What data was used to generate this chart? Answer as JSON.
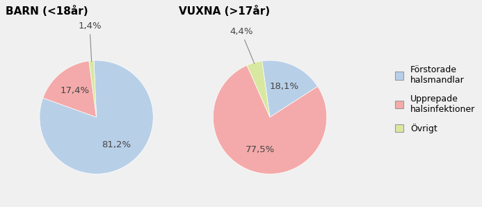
{
  "barn_title": "BARN (<18år)",
  "vuxna_title": "VUXNA (>17år)",
  "barn_values": [
    81.2,
    17.4,
    1.4
  ],
  "vuxna_values": [
    18.1,
    77.5,
    4.4
  ],
  "barn_labels": [
    "81,2%",
    "17,4%",
    "1,4%"
  ],
  "vuxna_labels": [
    "18,1%",
    "77,5%",
    "4,4%"
  ],
  "colors": [
    "#b8cfe8",
    "#f4aaaa",
    "#d8e8a0"
  ],
  "legend_labels": [
    "Förstorade\nhalsmandlar",
    "Upprepade\nhalsinfektioner",
    "Övrigt"
  ],
  "legend_colors": [
    "#b8cfe8",
    "#f4aaaa",
    "#d8e8a0"
  ],
  "background_color": "#f0f0f0",
  "title_fontsize": 11,
  "label_fontsize": 9.5
}
